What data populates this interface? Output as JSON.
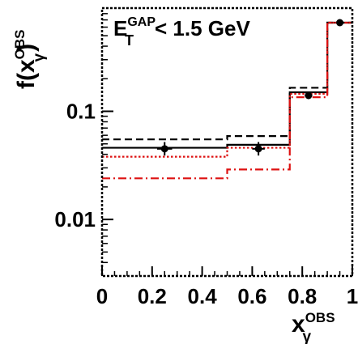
{
  "chart_data": {
    "type": "step-histogram",
    "annotation": {
      "base": "E",
      "sup": "GAP",
      "sub": "T",
      "rest": "< 1.5 GeV"
    },
    "xlabel": {
      "base": "x",
      "sup": "OBS",
      "sub": "γ"
    },
    "ylabel": {
      "prefix": "f(x",
      "sup": "OBS",
      "sub": "γ",
      "suffix": ")"
    },
    "x_ticks": [
      {
        "value": 0,
        "label": "0"
      },
      {
        "value": 0.2,
        "label": "0.2"
      },
      {
        "value": 0.4,
        "label": "0.4"
      },
      {
        "value": 0.6,
        "label": "0.6"
      },
      {
        "value": 0.8,
        "label": "0.8"
      },
      {
        "value": 1,
        "label": "1"
      }
    ],
    "y_ticks": [
      {
        "value": 0.1,
        "label": "0.1"
      },
      {
        "value": 0.01,
        "label": "0.01"
      }
    ],
    "xlim": [
      0,
      1
    ],
    "ylim": [
      0.003,
      0.9
    ],
    "y_scale": "log",
    "bins": [
      0,
      0.5,
      0.75,
      0.9,
      1.0
    ],
    "series": [
      {
        "style": "dashed",
        "color": "#000000",
        "values": [
          0.055,
          0.059,
          0.165,
          0.66
        ]
      },
      {
        "style": "solid",
        "color": "#000000",
        "values": [
          0.046,
          0.049,
          0.15,
          0.66
        ]
      },
      {
        "style": "dotted",
        "color": "#dd1111",
        "values": [
          0.038,
          0.046,
          0.145,
          0.66
        ]
      },
      {
        "style": "dash-dot",
        "color": "#dd1111",
        "values": [
          0.024,
          0.029,
          0.135,
          0.66
        ]
      }
    ],
    "data_points": [
      {
        "x": 0.25,
        "y": 0.045,
        "y_err_low": 0.039,
        "y_err_high": 0.052,
        "x_err_low": 0.22,
        "x_err_high": 0.28
      },
      {
        "x": 0.625,
        "y": 0.045,
        "y_err_low": 0.039,
        "y_err_high": 0.052,
        "x_err_low": 0.6,
        "x_err_high": 0.65
      },
      {
        "x": 0.825,
        "y": 0.14,
        "y_err_low": 0.13,
        "y_err_high": 0.152,
        "x_err_low": 0.81,
        "x_err_high": 0.84
      },
      {
        "x": 0.95,
        "y": 0.66,
        "y_err_low": 0.64,
        "y_err_high": 0.68,
        "x_err_low": 0.94,
        "x_err_high": 0.96
      }
    ]
  }
}
